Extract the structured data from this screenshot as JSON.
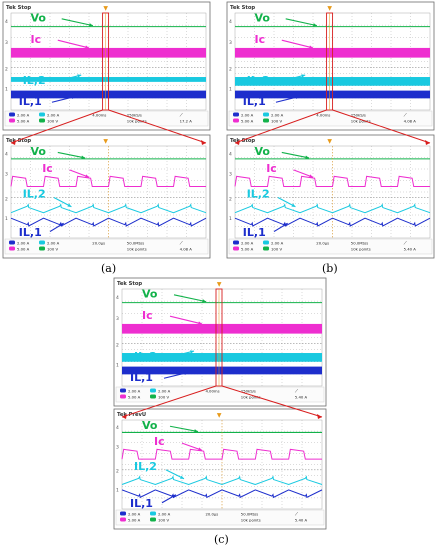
{
  "panels": [
    {
      "id": "a",
      "caption": "(a)",
      "top_header": "Tek Stop",
      "bottom_header": "Tek Stop",
      "top_status": [
        "2.00 A",
        "5.00 A",
        "2.00 A",
        "100 V",
        "4.00ms",
        "250kS/s",
        "10k points",
        "17.2 A"
      ],
      "bottom_status": [
        "2.00 A",
        "5.00 A",
        "2.00 A",
        "100 V",
        "20.0µs",
        "50.0MS/s",
        "10k points",
        "4.08 A"
      ]
    },
    {
      "id": "b",
      "caption": "(b)",
      "top_header": "Tek Stop",
      "bottom_header": "Tek Stop",
      "top_status": [
        "2.00 A",
        "5.00 A",
        "2.00 A",
        "100 V",
        "4.00ms",
        "250kS/s",
        "10k points",
        "4.08 A"
      ],
      "bottom_status": [
        "2.00 A",
        "5.00 A",
        "2.00 A",
        "100 V",
        "20.0µs",
        "50.0MS/s",
        "10k points",
        "5.40 A"
      ]
    },
    {
      "id": "c",
      "caption": "(c)",
      "top_header": "Tek Stop",
      "bottom_header": "Tek PrevU",
      "top_status": [
        "2.00 A",
        "5.00 A",
        "2.00 A",
        "100 V",
        "4.00ms",
        "250kS/s",
        "10k points",
        "5.40 A"
      ],
      "bottom_status": [
        "2.00 A",
        "5.00 A",
        "2.00 A",
        "100 V",
        "20.0µs",
        "50.0MS/s",
        "10k points",
        "5.40 A"
      ]
    }
  ],
  "trace_labels": {
    "vo": "Vo",
    "ic": "Ic",
    "il2": "IL,2",
    "il1": "IL,1"
  },
  "colors": {
    "vo": "#12b24a",
    "ic": "#ee2ed0",
    "il2": "#19c9e0",
    "il1": "#1d2ecc",
    "zoom": "#d81e1e",
    "grid": "#9a9a9a"
  }
}
